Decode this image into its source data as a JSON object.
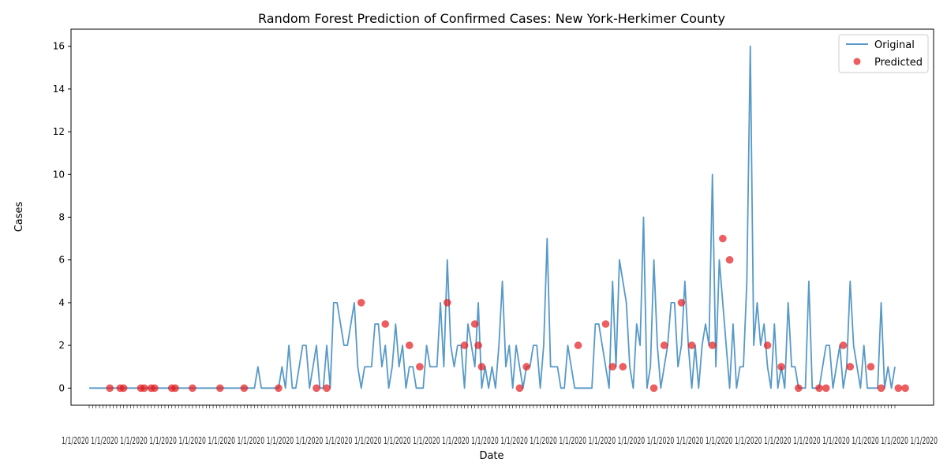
{
  "chart_data": {
    "type": "line",
    "title": "Random Forest Prediction of Confirmed Cases: New York-Herkimer County",
    "xlabel": "Date",
    "ylabel": "Cases",
    "ylim": [
      -0.8,
      16.8
    ],
    "yticks": [
      0,
      2,
      4,
      6,
      8,
      10,
      12,
      14,
      16
    ],
    "grid": false,
    "legend_position": "top-right",
    "x_tick_labels_note": "dense overlapping date tick labels, one per observation",
    "series": [
      {
        "name": "Original",
        "kind": "line",
        "color": "#1f77b4",
        "values": [
          0,
          0,
          0,
          0,
          0,
          0,
          0,
          0,
          0,
          0,
          0,
          0,
          0,
          0,
          0,
          0,
          0,
          0,
          0,
          0,
          0,
          0,
          0,
          0,
          0,
          0,
          0,
          0,
          0,
          0,
          0,
          0,
          0,
          0,
          0,
          0,
          0,
          0,
          0,
          0,
          0,
          0,
          0,
          0,
          0,
          0,
          0,
          0,
          0,
          1,
          0,
          0,
          0,
          0,
          0,
          0,
          1,
          0,
          2,
          0,
          0,
          1,
          2,
          2,
          0,
          1,
          2,
          0,
          0,
          2,
          0,
          4,
          4,
          3,
          2,
          2,
          3,
          4,
          1,
          0,
          1,
          1,
          1,
          3,
          3,
          1,
          2,
          0,
          1,
          3,
          1,
          2,
          0,
          1,
          1,
          0,
          0,
          0,
          2,
          1,
          1,
          1,
          4,
          1,
          6,
          2,
          1,
          2,
          2,
          0,
          3,
          2,
          1,
          4,
          0,
          1,
          0,
          1,
          0,
          2,
          5,
          1,
          2,
          0,
          2,
          1,
          0,
          1,
          1,
          2,
          2,
          0,
          2,
          7,
          1,
          1,
          1,
          0,
          0,
          2,
          1,
          0,
          0,
          0,
          0,
          0,
          0,
          3,
          3,
          2,
          1,
          0,
          5,
          1,
          6,
          5,
          4,
          1,
          0,
          3,
          2,
          8,
          0,
          1,
          6,
          2,
          0,
          1,
          2,
          4,
          4,
          1,
          2,
          5,
          2,
          0,
          2,
          0,
          2,
          3,
          2,
          10,
          1,
          6,
          4,
          2,
          0,
          3,
          0,
          1,
          1,
          5,
          16,
          2,
          4,
          2,
          3,
          1,
          0,
          3,
          0,
          1,
          0,
          4,
          1,
          1,
          0,
          0,
          0,
          5,
          0,
          0,
          0,
          1,
          2,
          2,
          0,
          1,
          2,
          0,
          1,
          5,
          2,
          1,
          0,
          2,
          0,
          0,
          0,
          0,
          4,
          0,
          1,
          0,
          1
        ]
      },
      {
        "name": "Predicted",
        "kind": "scatter",
        "color": "#e41a1c",
        "points": [
          [
            6,
            0
          ],
          [
            9,
            0
          ],
          [
            10,
            0
          ],
          [
            15,
            0
          ],
          [
            16,
            0
          ],
          [
            18,
            0
          ],
          [
            19,
            0
          ],
          [
            24,
            0
          ],
          [
            25,
            0
          ],
          [
            30,
            0
          ],
          [
            38,
            0
          ],
          [
            45,
            0
          ],
          [
            55,
            0
          ],
          [
            66,
            0
          ],
          [
            69,
            0
          ],
          [
            79,
            4
          ],
          [
            86,
            3
          ],
          [
            93,
            2
          ],
          [
            96,
            1
          ],
          [
            104,
            4
          ],
          [
            109,
            2
          ],
          [
            112,
            3
          ],
          [
            113,
            2
          ],
          [
            114,
            1
          ],
          [
            125,
            0
          ],
          [
            127,
            1
          ],
          [
            142,
            2
          ],
          [
            150,
            3
          ],
          [
            152,
            1
          ],
          [
            155,
            1
          ],
          [
            164,
            0
          ],
          [
            167,
            2
          ],
          [
            172,
            4
          ],
          [
            175,
            2
          ],
          [
            181,
            2
          ],
          [
            184,
            7
          ],
          [
            186,
            6
          ],
          [
            197,
            2
          ],
          [
            201,
            1
          ],
          [
            206,
            0
          ],
          [
            212,
            0
          ],
          [
            214,
            0
          ],
          [
            219,
            2
          ],
          [
            221,
            1
          ],
          [
            227,
            1
          ],
          [
            230,
            0
          ],
          [
            235,
            0
          ],
          [
            237,
            0
          ]
        ]
      }
    ]
  }
}
